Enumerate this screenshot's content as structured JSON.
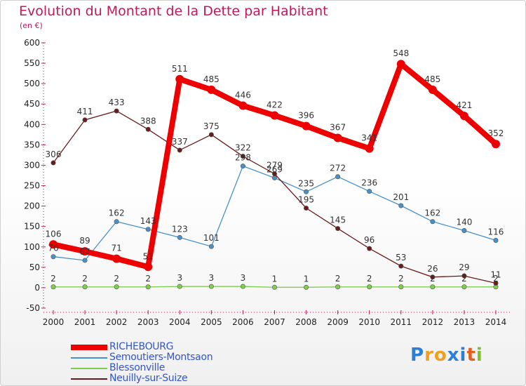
{
  "title": "Evolution du Montant de la Dette par Habitant",
  "subtitle": "(en €)",
  "logo": {
    "text": "Proxiti",
    "letters": [
      "P",
      "r",
      "o",
      "x",
      "i",
      "t",
      "i"
    ],
    "colors": [
      "#2d7fd3",
      "#f0a020",
      "#f0a020",
      "#2d7fd3",
      "#2d7fd3",
      "#e06020",
      "#80c030"
    ]
  },
  "chart_data": {
    "type": "line",
    "x": [
      "2000",
      "2001",
      "2002",
      "2003",
      "2004",
      "2005",
      "2006",
      "2007",
      "2008",
      "2009",
      "2010",
      "2011",
      "2012",
      "2013",
      "2014"
    ],
    "ylim": [
      -50,
      600
    ],
    "yticks": [
      "-50",
      "0",
      "50",
      "100",
      "150",
      "200",
      "250",
      "300",
      "350",
      "400",
      "450",
      "500",
      "550",
      "600"
    ],
    "grid": false,
    "legend_position": "bottom-left",
    "series": [
      {
        "name": "RICHEBOURG",
        "color": "#ee0000",
        "emphasis": true,
        "values": [
          106,
          89,
          71,
          51,
          511,
          485,
          446,
          422,
          396,
          367,
          341,
          548,
          485,
          421,
          352
        ],
        "labels": [
          "106",
          "89",
          "71",
          "51",
          "511",
          "485",
          "446",
          "422",
          "396",
          "367",
          "341",
          "548",
          "485",
          "421",
          "352"
        ]
      },
      {
        "name": "Semoutiers-Montsaon",
        "color": "#4a90c8",
        "emphasis": false,
        "values": [
          76,
          67,
          162,
          143,
          123,
          101,
          298,
          269,
          235,
          272,
          236,
          201,
          162,
          140,
          116
        ],
        "labels": [
          "76",
          "67",
          "162",
          "143",
          "123",
          "101",
          "298",
          "269",
          "235",
          "272",
          "236",
          "201",
          "162",
          "140",
          "116"
        ]
      },
      {
        "name": "Blessonville",
        "color": "#80cc50",
        "emphasis": false,
        "values": [
          2,
          2,
          2,
          2,
          3,
          3,
          3,
          1,
          1,
          2,
          2,
          2,
          2,
          2,
          2
        ],
        "labels": [
          "2",
          "2",
          "2",
          "2",
          "3",
          "3",
          "3",
          "1",
          "1",
          "2",
          "2",
          "2",
          "2",
          "2",
          "2"
        ]
      },
      {
        "name": "Neuilly-sur-Suize",
        "color": "#6b1a1a",
        "emphasis": false,
        "values": [
          306,
          411,
          433,
          388,
          337,
          375,
          322,
          279,
          195,
          145,
          96,
          53,
          26,
          29,
          11
        ],
        "labels": [
          "306",
          "411",
          "433",
          "388",
          "337",
          "375",
          "322",
          "279",
          "195",
          "145",
          "96",
          "53",
          "26",
          "29",
          "11"
        ]
      }
    ]
  }
}
